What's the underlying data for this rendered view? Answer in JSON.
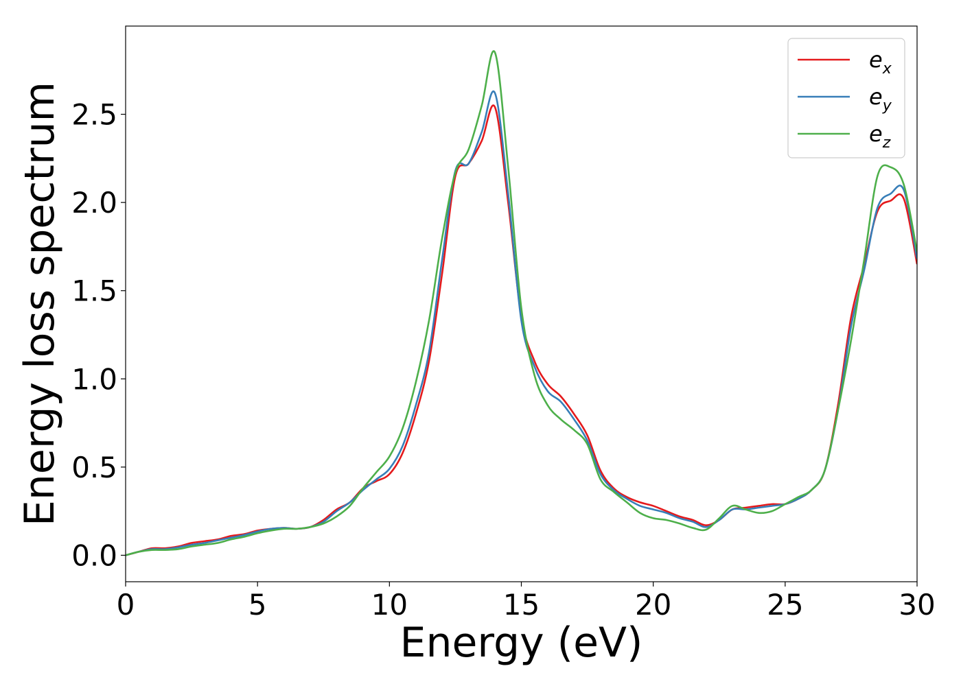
{
  "chart_data": {
    "type": "line",
    "title": "",
    "xlabel": "Energy (eV)",
    "ylabel": "Energy loss spectrum",
    "xlim": [
      0,
      30
    ],
    "ylim": [
      -0.15,
      3.0
    ],
    "xticks": [
      0,
      5,
      10,
      15,
      20,
      25,
      30
    ],
    "xtick_labels": [
      "0",
      "5",
      "10",
      "15",
      "20",
      "25",
      "30"
    ],
    "yticks": [
      0.0,
      0.5,
      1.0,
      1.5,
      2.0,
      2.5
    ],
    "ytick_labels": [
      "0.0",
      "0.5",
      "1.0",
      "1.5",
      "2.0",
      "2.5"
    ],
    "grid": false,
    "legend_position": "top-right",
    "x": [
      0,
      0.5,
      1,
      1.5,
      2,
      2.5,
      3,
      3.5,
      4,
      4.5,
      5,
      5.5,
      6,
      6.5,
      7,
      7.5,
      8,
      8.5,
      9,
      9.5,
      10,
      10.5,
      11,
      11.5,
      12,
      12.5,
      13,
      13.5,
      14,
      14.5,
      15,
      15.5,
      16,
      16.5,
      17,
      17.5,
      18,
      18.5,
      19,
      19.5,
      20,
      20.5,
      21,
      21.5,
      22,
      22.5,
      23,
      23.5,
      24,
      24.5,
      25,
      25.5,
      26,
      26.5,
      27,
      27.5,
      28,
      28.5,
      29,
      29.5,
      30
    ],
    "series": [
      {
        "name": "e",
        "name_subscript": "x",
        "color": "#e41a1c",
        "values": [
          0.0,
          0.02,
          0.04,
          0.04,
          0.05,
          0.07,
          0.08,
          0.09,
          0.11,
          0.12,
          0.14,
          0.15,
          0.155,
          0.15,
          0.16,
          0.2,
          0.26,
          0.3,
          0.38,
          0.42,
          0.46,
          0.58,
          0.8,
          1.1,
          1.6,
          2.15,
          2.22,
          2.35,
          2.54,
          2.0,
          1.35,
          1.1,
          0.97,
          0.9,
          0.8,
          0.68,
          0.48,
          0.38,
          0.33,
          0.3,
          0.28,
          0.25,
          0.22,
          0.2,
          0.17,
          0.2,
          0.26,
          0.27,
          0.28,
          0.29,
          0.29,
          0.32,
          0.37,
          0.48,
          0.85,
          1.35,
          1.65,
          1.95,
          2.01,
          2.02,
          1.65
        ]
      },
      {
        "name": "e",
        "name_subscript": "y",
        "color": "#377eb8",
        "values": [
          0.0,
          0.02,
          0.035,
          0.035,
          0.045,
          0.06,
          0.07,
          0.085,
          0.1,
          0.115,
          0.135,
          0.15,
          0.155,
          0.15,
          0.16,
          0.19,
          0.25,
          0.3,
          0.37,
          0.43,
          0.49,
          0.62,
          0.85,
          1.15,
          1.68,
          2.18,
          2.22,
          2.4,
          2.62,
          2.05,
          1.33,
          1.07,
          0.93,
          0.87,
          0.77,
          0.65,
          0.46,
          0.37,
          0.32,
          0.28,
          0.26,
          0.24,
          0.21,
          0.19,
          0.16,
          0.2,
          0.26,
          0.26,
          0.27,
          0.28,
          0.29,
          0.32,
          0.37,
          0.48,
          0.82,
          1.3,
          1.62,
          1.97,
          2.05,
          2.07,
          1.68
        ]
      },
      {
        "name": "e",
        "name_subscript": "z",
        "color": "#4daf4a",
        "values": [
          0.0,
          0.02,
          0.03,
          0.03,
          0.035,
          0.05,
          0.06,
          0.07,
          0.09,
          0.105,
          0.125,
          0.14,
          0.15,
          0.15,
          0.16,
          0.18,
          0.22,
          0.28,
          0.38,
          0.47,
          0.56,
          0.72,
          0.98,
          1.33,
          1.8,
          2.17,
          2.3,
          2.55,
          2.85,
          2.2,
          1.4,
          1.02,
          0.85,
          0.77,
          0.71,
          0.63,
          0.43,
          0.36,
          0.3,
          0.24,
          0.21,
          0.2,
          0.18,
          0.155,
          0.145,
          0.21,
          0.28,
          0.26,
          0.24,
          0.25,
          0.29,
          0.33,
          0.37,
          0.48,
          0.82,
          1.22,
          1.68,
          2.15,
          2.2,
          2.1,
          1.72
        ]
      }
    ]
  }
}
